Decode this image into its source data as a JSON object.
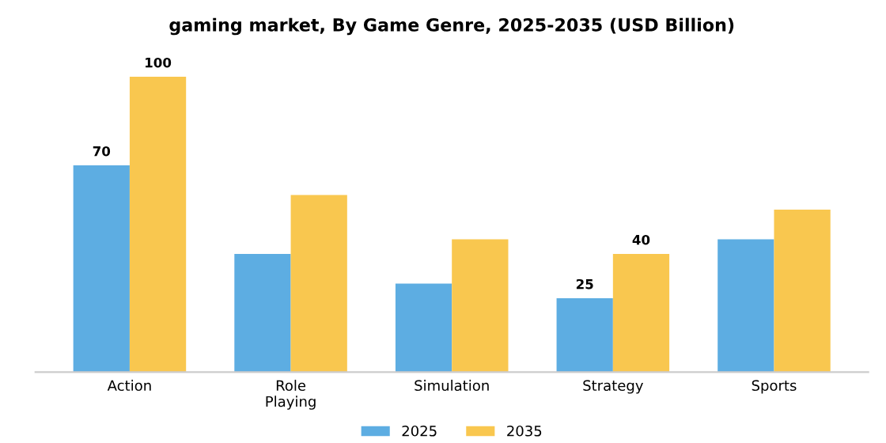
{
  "chart_data": {
    "type": "bar",
    "title": "gaming market, By Game Genre, 2025-2035 (USD Billion)",
    "categories": [
      "Action",
      "Role\nPlaying",
      "Simulation",
      "Strategy",
      "Sports"
    ],
    "series": [
      {
        "name": "2025",
        "color": "#5dade2",
        "values": [
          70,
          40,
          30,
          25,
          45
        ],
        "value_labels": [
          "70",
          null,
          null,
          "25",
          null
        ]
      },
      {
        "name": "2035",
        "color": "#f9c74f",
        "values": [
          100,
          60,
          45,
          40,
          55
        ],
        "value_labels": [
          "100",
          null,
          null,
          "40",
          null
        ]
      }
    ],
    "legend": "bottom",
    "grid": false,
    "tick_labels": "x"
  }
}
